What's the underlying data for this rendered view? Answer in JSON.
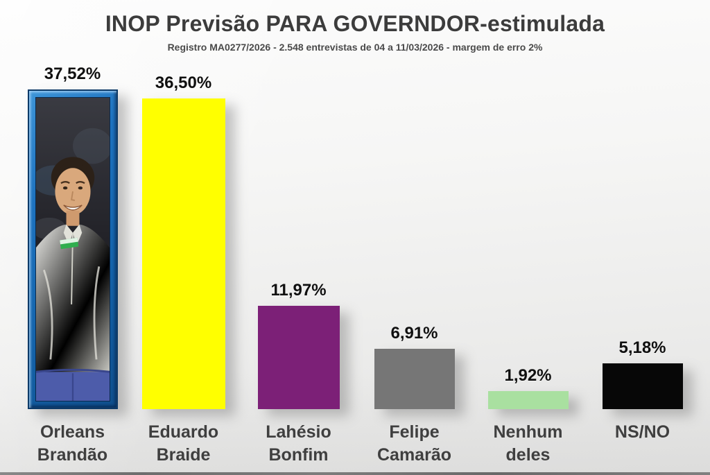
{
  "header": {
    "title": "INOP Previsão PARA GOVERNDOR-estimulada",
    "subtitle": "Registro MA0277/2026 - 2.548 entrevistas de 04 a 11/03/2026 - margem de erro 2%"
  },
  "chart_data": {
    "type": "bar",
    "title": "INOP Previsão PARA GOVERNDOR-estimulada",
    "subtitle": "Registro MA0277/2026 - 2.548 entrevistas de 04 a 11/03/2026 - margem de erro 2%",
    "categories": [
      "Orleans Brandão",
      "Eduardo Braide",
      "Lahésio Bonfim",
      "Felipe Camarão",
      "Nenhum deles",
      "NS/NO"
    ],
    "values": [
      37.52,
      36.5,
      11.97,
      6.91,
      1.92,
      5.18
    ],
    "value_labels": [
      "37,52%",
      "36,50%",
      "11,97%",
      "6,91%",
      "1,92%",
      "5,18%"
    ],
    "ylim": [
      0,
      40
    ],
    "grid": false,
    "legend": false,
    "bars": [
      {
        "value": 37.52,
        "value_label": "37,52%",
        "line1": "Orleans",
        "line2": "Brandão",
        "color": "photo",
        "frame_color": "#1e73c0"
      },
      {
        "value": 36.5,
        "value_label": "36,50%",
        "line1": "Eduardo",
        "line2": "Braide",
        "color": "#ffff00"
      },
      {
        "value": 11.97,
        "value_label": "11,97%",
        "line1": "Lahésio",
        "line2": "Bonfim",
        "color": "#7c2077"
      },
      {
        "value": 6.91,
        "value_label": "6,91%",
        "line1": "Felipe",
        "line2": "Camarão",
        "color": "#767676"
      },
      {
        "value": 1.92,
        "value_label": "1,92%",
        "line1": "Nenhum",
        "line2": "deles",
        "color": "#a9e0a0"
      },
      {
        "value": 5.18,
        "value_label": "5,18%",
        "line1": "NS/NO",
        "line2": "",
        "color": "#070707"
      }
    ]
  }
}
